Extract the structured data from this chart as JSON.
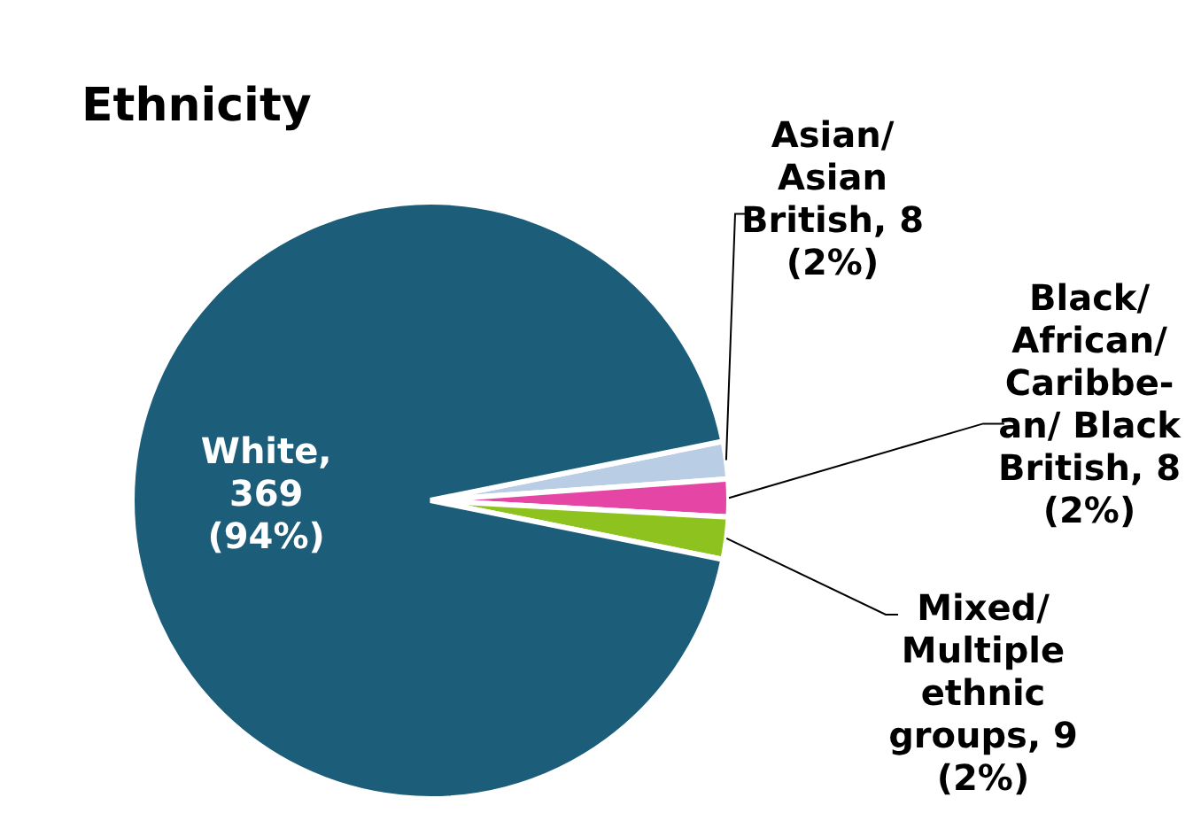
{
  "chart_data": {
    "type": "pie",
    "title": "Ethnicity",
    "categories": [
      "Asian/ Asian British",
      "Black/ African/ Caribbe-an/ Black British",
      "Mixed/ Multiple ethnic groups",
      "White"
    ],
    "values": [
      8,
      8,
      9,
      369
    ],
    "colors": [
      "#b9cde5",
      "#e546a6",
      "#8ec31f",
      "#1c5d79"
    ],
    "value_labels": [
      ", 8 (2%)",
      ", 8 (2%)",
      ", 9 (2%)",
      ", 369 (94%)"
    ],
    "legend": false
  }
}
